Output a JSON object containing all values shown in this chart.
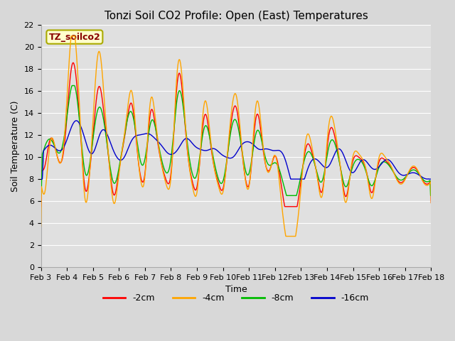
{
  "title": "Tonzi Soil CO2 Profile: Open (East) Temperatures",
  "xlabel": "Time",
  "ylabel": "Soil Temperature (C)",
  "ylim": [
    0,
    22
  ],
  "yticks": [
    0,
    2,
    4,
    6,
    8,
    10,
    12,
    14,
    16,
    18,
    20,
    22
  ],
  "xtick_labels": [
    "Feb 3",
    "Feb 4",
    "Feb 5",
    "Feb 6",
    "Feb 7",
    "Feb 8",
    "Feb 9",
    "Feb 10",
    "Feb 11",
    "Feb 12",
    "Feb 13",
    "Feb 14",
    "Feb 15",
    "Feb 16",
    "Feb 17",
    "Feb 18"
  ],
  "colors": {
    "-2cm": "#ff0000",
    "-4cm": "#ffa500",
    "-8cm": "#00bb00",
    "-16cm": "#0000cc"
  },
  "legend_labels": [
    "-2cm",
    "-4cm",
    "-8cm",
    "-16cm"
  ],
  "annotation_text": "TZ_soilco2",
  "annotation_bg": "#ffffcc",
  "annotation_border": "#aaaa00",
  "annotation_text_color": "#880000",
  "fig_bg": "#d8d8d8",
  "plot_bg": "#e0e0e0",
  "title_fontsize": 11,
  "label_fontsize": 9,
  "tick_fontsize": 8
}
